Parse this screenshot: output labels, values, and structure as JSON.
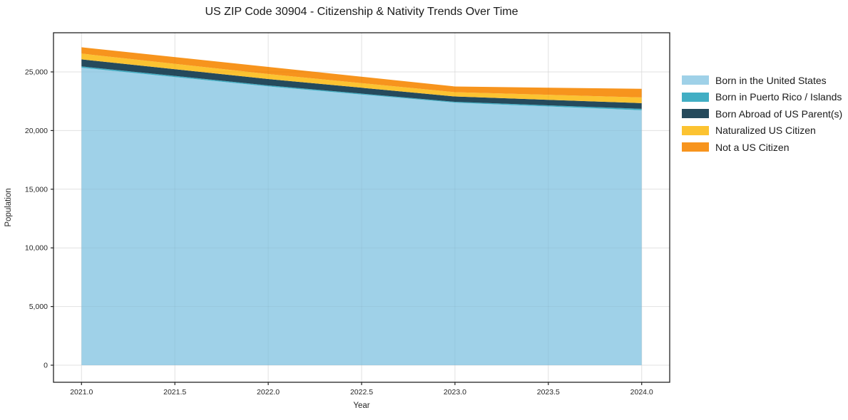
{
  "page": {
    "background": "#ffffff"
  },
  "chart_data": {
    "type": "area",
    "stacked": true,
    "title": "US ZIP Code 30904 - Citizenship & Nativity Trends Over Time",
    "xlabel": "Year",
    "ylabel": "Population",
    "x": [
      2021,
      2022,
      2023,
      2024
    ],
    "series": [
      {
        "name": "Born in the United States",
        "color": "#9fd1e8",
        "values": [
          25360,
          23760,
          22380,
          21730
        ]
      },
      {
        "name": "Born in Puerto Rico / Islands",
        "color": "#41aec4",
        "values": [
          110,
          90,
          70,
          120
        ]
      },
      {
        "name": "Born Abroad of US Parent(s)",
        "color": "#254a5c",
        "values": [
          600,
          545,
          455,
          485
        ]
      },
      {
        "name": "Naturalized US Citizen",
        "color": "#fcc331",
        "values": [
          490,
          425,
          365,
          490
        ]
      },
      {
        "name": "Not a US Citizen",
        "color": "#f7941d",
        "values": [
          540,
          605,
          485,
          730
        ]
      }
    ],
    "totals": [
      27100,
      25425,
      23755,
      23555
    ],
    "xlim": [
      2020.85,
      2024.15
    ],
    "ylim": [
      -1456,
      28338
    ],
    "x_tick_values": [
      2021.0,
      2021.5,
      2022.0,
      2022.5,
      2023.0,
      2023.5,
      2024.0
    ],
    "x_tick_labels": [
      "2021.0",
      "2021.5",
      "2022.0",
      "2022.5",
      "2023.0",
      "2023.5",
      "2024.0"
    ],
    "y_tick_values": [
      0,
      5000,
      10000,
      15000,
      20000,
      25000
    ],
    "y_tick_labels": [
      "0",
      "5,000",
      "10,000",
      "15,000",
      "20,000",
      "25,000"
    ],
    "grid": true,
    "grid_color": "#ececec",
    "spine_color": "#222222",
    "legend_position": "outside-right"
  }
}
